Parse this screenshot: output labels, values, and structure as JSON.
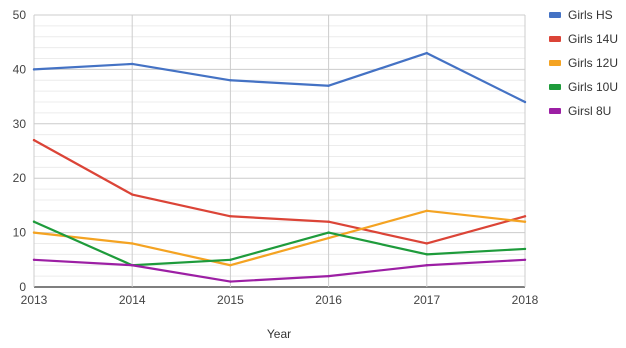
{
  "chart_data": {
    "type": "line",
    "title": "",
    "xlabel": "Year",
    "ylabel": "",
    "x": [
      "2013",
      "2014",
      "2015",
      "2016",
      "2017",
      "2018"
    ],
    "ylim": [
      0,
      50
    ],
    "y_ticks": [
      "0",
      "10",
      "20",
      "30",
      "40",
      "50"
    ],
    "grid": true,
    "legend_position": "right",
    "series": [
      {
        "name": "Girls HS",
        "color": "#4472C4",
        "values": [
          40,
          41,
          38,
          37,
          43,
          34
        ]
      },
      {
        "name": "Girls 14U",
        "color": "#DB4437",
        "values": [
          27,
          17,
          13,
          12,
          8,
          13
        ]
      },
      {
        "name": "Girls 12U",
        "color": "#F4A322",
        "values": [
          10,
          8,
          4,
          9,
          14,
          12
        ]
      },
      {
        "name": "Girls 10U",
        "color": "#1E9B3B",
        "values": [
          12,
          4,
          5,
          10,
          6,
          7
        ]
      },
      {
        "name": "Girsl 8U",
        "color": "#9C1FA4",
        "values": [
          5,
          4,
          1,
          2,
          4,
          5
        ]
      }
    ]
  }
}
